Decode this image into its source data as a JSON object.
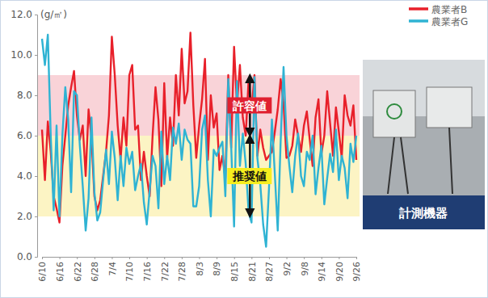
{
  "chart_data": {
    "type": "line",
    "y_label": "(g/㎡)",
    "categories": [
      "6/10",
      null,
      null,
      null,
      null,
      null,
      "6/16",
      null,
      null,
      null,
      null,
      null,
      "6/22",
      null,
      null,
      null,
      null,
      null,
      "6/28",
      null,
      null,
      null,
      null,
      null,
      "7/4",
      null,
      null,
      null,
      null,
      null,
      "7/10",
      null,
      null,
      null,
      null,
      null,
      "7/16",
      null,
      null,
      null,
      null,
      null,
      "7/22",
      null,
      null,
      null,
      null,
      null,
      "7/28",
      null,
      null,
      null,
      null,
      null,
      "8/3",
      null,
      null,
      null,
      null,
      null,
      "8/9",
      null,
      null,
      null,
      null,
      null,
      "8/15",
      null,
      null,
      null,
      null,
      null,
      "8/21",
      null,
      null,
      null,
      null,
      null,
      "8/27",
      null,
      null,
      null,
      null,
      null,
      "9/2",
      null,
      null,
      null,
      null,
      null,
      "9/8",
      null,
      null,
      null,
      null,
      null,
      "9/14",
      null,
      null,
      null,
      null,
      null,
      "9/20",
      null,
      null,
      null,
      null,
      null,
      "9/26"
    ],
    "series": [
      {
        "name": "農業者B",
        "color": "#e8202a",
        "values": [
          6.3,
          3.8,
          6.7,
          5.2,
          3.0,
          2.4,
          1.7,
          4.5,
          6.0,
          7.5,
          8.4,
          9.2,
          7.0,
          5.8,
          6.5,
          4.0,
          7.3,
          5.9,
          3.0,
          2.3,
          2.8,
          4.0,
          5.2,
          7.0,
          10.9,
          9.0,
          6.5,
          4.8,
          6.9,
          5.5,
          9.0,
          9.5,
          6.3,
          6.5,
          3.8,
          5.2,
          4.0,
          3.0,
          6.0,
          8.4,
          6.8,
          3.5,
          8.6,
          4.9,
          6.9,
          5.5,
          9.0,
          7.0,
          10.3,
          7.6,
          8.2,
          11.1,
          7.5,
          4.9,
          6.5,
          7.8,
          9.8,
          4.8,
          8.0,
          6.4,
          7.1,
          4.3,
          5.0,
          3.9,
          9.0,
          5.4,
          10.4,
          7.5,
          9.5,
          6.9,
          6.0,
          8.8,
          7.3,
          9.0,
          5.0,
          6.3,
          5.4,
          4.8,
          5.0,
          5.2,
          6.2,
          7.3,
          8.8,
          7.6,
          4.9,
          5.0,
          5.5,
          6.8,
          6.0,
          5.2,
          6.5,
          7.2,
          5.8,
          4.5,
          6.9,
          7.8,
          5.1,
          6.0,
          8.2,
          6.6,
          5.0,
          7.4,
          6.2,
          4.9,
          8.0,
          7.0,
          6.5,
          7.5,
          4.8
        ]
      },
      {
        "name": "農業者G",
        "color": "#2fb3d3",
        "values": [
          10.8,
          9.5,
          11.0,
          6.0,
          2.3,
          6.5,
          2.0,
          6.0,
          8.4,
          6.8,
          3.2,
          8.2,
          8.0,
          5.5,
          3.5,
          1.3,
          2.9,
          6.9,
          3.2,
          1.8,
          2.2,
          3.8,
          5.3,
          3.6,
          6.2,
          4.9,
          2.8,
          5.0,
          3.5,
          5.4,
          4.6,
          5.2,
          3.3,
          4.0,
          4.6,
          2.7,
          1.6,
          3.3,
          5.0,
          4.5,
          2.4,
          6.2,
          3.6,
          5.0,
          3.8,
          6.4,
          5.6,
          6.6,
          4.8,
          6.3,
          5.8,
          5.6,
          2.5,
          2.5,
          3.5,
          6.3,
          7.0,
          3.8,
          2.0,
          5.3,
          5.0,
          5.4,
          5.7,
          3.0,
          8.8,
          5.5,
          1.5,
          8.7,
          4.5,
          6.1,
          4.6,
          2.2,
          1.7,
          8.9,
          4.9,
          3.6,
          1.6,
          0.5,
          3.4,
          6.8,
          4.1,
          1.3,
          5.7,
          9.4,
          6.0,
          4.5,
          3.2,
          5.0,
          6.1,
          4.0,
          3.5,
          5.2,
          4.8,
          6.0,
          3.1,
          4.4,
          5.5,
          2.6,
          3.9,
          5.1,
          4.2,
          6.3,
          3.8,
          5.0,
          4.4,
          2.9,
          5.6,
          4.7,
          6.0
        ]
      }
    ],
    "bands": [
      {
        "label": "許容値",
        "from": 6,
        "to": 9,
        "color": "#f9d3d8"
      },
      {
        "label": "推奨値",
        "from": 2,
        "to": 6,
        "color": "#fcf4c4"
      }
    ],
    "photo_label": "計測機器",
    "ylim": [
      0,
      12
    ],
    "yticks": [
      {
        "value": 0,
        "label": "0.0"
      },
      {
        "value": 2,
        "label": "2.0"
      },
      {
        "value": 4,
        "label": "4.0"
      },
      {
        "value": 6,
        "label": "6.0"
      },
      {
        "value": 8,
        "label": "8.0"
      },
      {
        "value": 10,
        "label": "10.0"
      },
      {
        "value": 12,
        "label": "12.0"
      }
    ],
    "grid": false,
    "legend": "top-right"
  }
}
